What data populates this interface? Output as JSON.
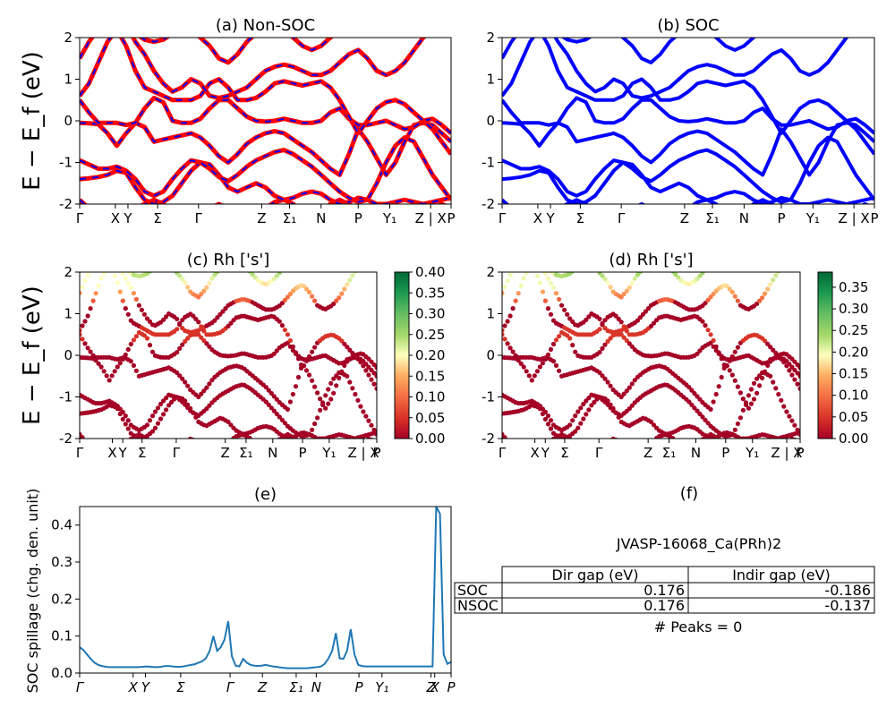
{
  "figure": {
    "ylabel_bands": "E − E_f (eV)",
    "ylabel_spillage": "SOC spillage (chg. den. unit)"
  },
  "kpath": {
    "band_labels": [
      "Γ",
      "X",
      "Y",
      "Σ",
      "Γ",
      "Z",
      "Σ₁",
      "N",
      "P",
      "Y₁",
      "Z | X",
      "P"
    ],
    "spillage_labels": [
      "Γ",
      "X",
      "Y",
      "Σ",
      "Γ",
      "Z",
      "Σ₁",
      "N",
      "P",
      "Y₁",
      "Z",
      "X",
      "P"
    ]
  },
  "colors": {
    "soc": "#0000ff",
    "nonsoc": "#ff0000",
    "spillage": "#1f77b4"
  },
  "chart_data": [
    {
      "id": "a",
      "type": "line",
      "title": "(a) Non-SOC",
      "ylim": [
        -2,
        2
      ],
      "yticks": [
        -2,
        -1,
        0,
        1,
        2
      ],
      "x": [
        0,
        1,
        2,
        3,
        4,
        5,
        6,
        7,
        8,
        9,
        10,
        11,
        12,
        13,
        14,
        15,
        16,
        17,
        18,
        19,
        20,
        21,
        22,
        23,
        24,
        25,
        26,
        27,
        28,
        29,
        30,
        31,
        32,
        33,
        34,
        35,
        36,
        37,
        38,
        39,
        40
      ],
      "series": [
        {
          "values": [
            -1.9,
            -2.1,
            -2.2,
            -2.3,
            -2.4,
            -2.3,
            -2.1,
            -2.0,
            -1.9,
            -2.0,
            -2.2,
            -2.4,
            -2.5,
            -2.3,
            -2.1,
            -2.0,
            -2.1,
            -2.3,
            -2.4,
            -2.3,
            -2.1,
            -1.95,
            -1.9,
            -2.0,
            -2.2,
            -2.3,
            -2.2,
            -2.0,
            -1.9,
            -2.0,
            -2.2,
            -2.3,
            -2.1,
            -2.0,
            -2.1,
            -2.2,
            -2.3,
            -2.2,
            -2.1,
            -2.0,
            -2.1
          ]
        },
        {
          "values": [
            -1.4,
            -1.38,
            -1.35,
            -1.3,
            -1.2,
            -1.25,
            -1.6,
            -1.9,
            -2.0,
            -1.95,
            -1.8,
            -1.5,
            -1.2,
            -1.0,
            -1.05,
            -1.3,
            -1.6,
            -1.7,
            -1.6,
            -1.5,
            -1.6,
            -1.8,
            -1.9,
            -1.85,
            -1.75,
            -1.7,
            -1.75,
            -1.9,
            -2.0,
            -1.95,
            -1.85,
            -1.9,
            -2.0,
            -2.0,
            -1.95,
            -1.9,
            -1.95,
            -2.0,
            -1.95,
            -1.9,
            -1.85
          ]
        },
        {
          "values": [
            -0.95,
            -1.05,
            -1.15,
            -1.15,
            -1.1,
            -1.2,
            -1.4,
            -1.7,
            -1.8,
            -1.7,
            -1.4,
            -1.15,
            -0.95,
            -1.0,
            -1.15,
            -1.35,
            -1.45,
            -1.3,
            -1.1,
            -0.95,
            -0.85,
            -0.75,
            -0.7,
            -0.8,
            -0.95,
            -1.1,
            -1.3,
            -1.5,
            -1.7,
            -1.85,
            -1.95,
            -1.9,
            -1.5,
            -1.0,
            -0.6,
            -0.4,
            -0.5,
            -0.9,
            -1.3,
            -1.6,
            -1.9
          ]
        },
        {
          "values": [
            -0.05,
            -0.06,
            -0.08,
            -0.3,
            -0.6,
            -0.3,
            -0.05,
            -0.15,
            -0.5,
            -0.45,
            -0.4,
            -0.35,
            -0.3,
            -0.4,
            -0.6,
            -0.85,
            -1.0,
            -0.8,
            -0.55,
            -0.4,
            -0.3,
            -0.25,
            -0.3,
            -0.45,
            -0.6,
            -0.75,
            -0.95,
            -1.15,
            -1.3,
            -0.8,
            -0.2,
            -0.5,
            -0.9,
            -1.3,
            -1.0,
            -0.5,
            -0.1,
            -0.05,
            -0.1,
            -0.3,
            -0.5
          ]
        },
        {
          "values": [
            0.5,
            0.2,
            -0.05,
            -0.05,
            -0.05,
            -0.1,
            -0.05,
            0.3,
            0.55,
            0.45,
            0.0,
            -0.05,
            -0.05,
            0.05,
            0.3,
            0.5,
            0.5,
            0.3,
            0.1,
            0.0,
            -0.02,
            0.0,
            0.05,
            0.0,
            -0.05,
            -0.05,
            0.0,
            0.2,
            0.3,
            0.05,
            -0.1,
            -0.1,
            -0.05,
            0.0,
            -0.1,
            -0.2,
            -0.15,
            0.0,
            0.05,
            -0.1,
            -0.3
          ]
        },
        {
          "values": [
            0.6,
            0.9,
            1.4,
            1.9,
            2.2,
            1.8,
            1.2,
            0.8,
            0.7,
            0.6,
            0.5,
            0.5,
            0.5,
            0.6,
            0.9,
            1.0,
            0.8,
            0.5,
            0.5,
            0.55,
            0.7,
            0.9,
            0.95,
            0.9,
            0.85,
            0.9,
            0.95,
            0.8,
            0.5,
            0.1,
            -0.3,
            0.0,
            0.3,
            0.45,
            0.5,
            0.4,
            0.2,
            0.0,
            -0.2,
            -0.5,
            -0.8
          ]
        },
        {
          "values": [
            1.5,
            1.9,
            2.2,
            2.4,
            2.5,
            2.3,
            1.9,
            1.6,
            1.2,
            0.9,
            0.7,
            0.8,
            1.0,
            0.9,
            0.6,
            0.55,
            0.6,
            0.7,
            0.8,
            1.0,
            1.2,
            1.3,
            1.35,
            1.3,
            1.2,
            1.1,
            1.1,
            1.2,
            1.4,
            1.6,
            1.7,
            1.5,
            1.2,
            1.1,
            1.2,
            1.4,
            1.7,
            2.0,
            2.2,
            2.3,
            2.4
          ]
        },
        {
          "values": [
            2.2,
            2.4,
            2.6,
            2.6,
            2.5,
            2.3,
            2.1,
            1.95,
            1.9,
            1.95,
            2.1,
            2.3,
            2.2,
            2.0,
            1.8,
            1.5,
            1.4,
            1.6,
            1.9,
            2.1,
            2.2,
            2.3,
            2.2,
            2.0,
            1.8,
            1.7,
            1.8,
            2.0,
            2.2,
            2.4,
            2.5,
            2.4,
            2.2,
            2.1,
            2.2,
            2.3,
            2.4,
            2.5,
            2.4,
            2.3,
            2.2
          ]
        }
      ]
    },
    {
      "id": "b",
      "type": "line",
      "title": "(b) SOC",
      "ylim": [
        -2,
        2
      ],
      "yticks": [
        -2,
        -1,
        0,
        1,
        2
      ],
      "x": [
        0,
        1,
        2,
        3,
        4,
        5,
        6,
        7,
        8,
        9,
        10,
        11,
        12,
        13,
        14,
        15,
        16,
        17,
        18,
        19,
        20,
        21,
        22,
        23,
        24,
        25,
        26,
        27,
        28,
        29,
        30,
        31,
        32,
        33,
        34,
        35,
        36,
        37,
        38,
        39,
        40
      ],
      "series": [
        {
          "values": [
            -1.9,
            -2.1,
            -2.2,
            -2.3,
            -2.4,
            -2.3,
            -2.1,
            -2.0,
            -1.9,
            -2.0,
            -2.2,
            -2.4,
            -2.5,
            -2.3,
            -2.1,
            -2.0,
            -2.1,
            -2.3,
            -2.4,
            -2.3,
            -2.1,
            -1.95,
            -1.9,
            -2.0,
            -2.2,
            -2.3,
            -2.2,
            -2.0,
            -1.9,
            -2.0,
            -2.2,
            -2.3,
            -2.1,
            -2.0,
            -2.1,
            -2.2,
            -2.3,
            -2.2,
            -2.1,
            -2.0,
            -2.1
          ]
        },
        {
          "values": [
            -1.4,
            -1.38,
            -1.35,
            -1.3,
            -1.2,
            -1.25,
            -1.6,
            -1.9,
            -2.0,
            -1.95,
            -1.8,
            -1.5,
            -1.2,
            -1.0,
            -1.05,
            -1.3,
            -1.6,
            -1.7,
            -1.6,
            -1.5,
            -1.6,
            -1.8,
            -1.9,
            -1.85,
            -1.75,
            -1.7,
            -1.75,
            -1.9,
            -2.0,
            -1.95,
            -1.85,
            -1.9,
            -2.0,
            -2.0,
            -1.95,
            -1.9,
            -1.95,
            -2.0,
            -1.95,
            -1.9,
            -1.85
          ]
        },
        {
          "values": [
            -0.95,
            -1.05,
            -1.15,
            -1.15,
            -1.1,
            -1.2,
            -1.4,
            -1.7,
            -1.8,
            -1.7,
            -1.4,
            -1.15,
            -0.95,
            -1.0,
            -1.15,
            -1.35,
            -1.45,
            -1.3,
            -1.1,
            -0.95,
            -0.85,
            -0.75,
            -0.7,
            -0.8,
            -0.95,
            -1.1,
            -1.3,
            -1.5,
            -1.7,
            -1.85,
            -1.95,
            -1.9,
            -1.5,
            -1.0,
            -0.6,
            -0.4,
            -0.5,
            -0.9,
            -1.3,
            -1.6,
            -1.9
          ]
        },
        {
          "values": [
            -0.05,
            -0.06,
            -0.08,
            -0.3,
            -0.6,
            -0.3,
            -0.05,
            -0.15,
            -0.5,
            -0.45,
            -0.4,
            -0.35,
            -0.3,
            -0.4,
            -0.6,
            -0.85,
            -1.0,
            -0.8,
            -0.55,
            -0.4,
            -0.3,
            -0.25,
            -0.3,
            -0.45,
            -0.6,
            -0.75,
            -0.95,
            -1.15,
            -1.3,
            -0.8,
            -0.2,
            -0.5,
            -0.9,
            -1.3,
            -1.0,
            -0.5,
            -0.1,
            -0.05,
            -0.1,
            -0.3,
            -0.5
          ]
        },
        {
          "values": [
            0.5,
            0.2,
            -0.05,
            -0.05,
            -0.05,
            -0.1,
            -0.05,
            0.3,
            0.55,
            0.45,
            0.0,
            -0.05,
            -0.05,
            0.05,
            0.3,
            0.5,
            0.5,
            0.3,
            0.1,
            0.0,
            -0.02,
            0.0,
            0.05,
            0.0,
            -0.05,
            -0.05,
            0.0,
            0.2,
            0.3,
            0.05,
            -0.1,
            -0.1,
            -0.05,
            0.0,
            -0.1,
            -0.2,
            -0.15,
            0.0,
            0.05,
            -0.1,
            -0.3
          ]
        },
        {
          "values": [
            0.6,
            0.9,
            1.4,
            1.9,
            2.2,
            1.8,
            1.2,
            0.8,
            0.7,
            0.6,
            0.5,
            0.5,
            0.5,
            0.6,
            0.9,
            1.0,
            0.8,
            0.5,
            0.5,
            0.55,
            0.7,
            0.9,
            0.95,
            0.9,
            0.85,
            0.9,
            0.95,
            0.8,
            0.5,
            0.1,
            -0.3,
            0.0,
            0.3,
            0.45,
            0.5,
            0.4,
            0.2,
            0.0,
            -0.2,
            -0.5,
            -0.8
          ]
        },
        {
          "values": [
            1.5,
            1.9,
            2.2,
            2.4,
            2.5,
            2.3,
            1.9,
            1.6,
            1.2,
            0.9,
            0.7,
            0.8,
            1.0,
            0.9,
            0.6,
            0.55,
            0.6,
            0.7,
            0.8,
            1.0,
            1.2,
            1.3,
            1.35,
            1.3,
            1.2,
            1.1,
            1.1,
            1.2,
            1.4,
            1.6,
            1.7,
            1.5,
            1.2,
            1.1,
            1.2,
            1.4,
            1.7,
            2.0,
            2.2,
            2.3,
            2.4
          ]
        },
        {
          "values": [
            2.2,
            2.4,
            2.6,
            2.6,
            2.5,
            2.3,
            2.1,
            1.95,
            1.9,
            1.95,
            2.1,
            2.3,
            2.2,
            2.0,
            1.8,
            1.5,
            1.4,
            1.6,
            1.9,
            2.1,
            2.2,
            2.3,
            2.2,
            2.0,
            1.8,
            1.7,
            1.8,
            2.0,
            2.2,
            2.4,
            2.5,
            2.4,
            2.2,
            2.1,
            2.2,
            2.3,
            2.4,
            2.5,
            2.4,
            2.3,
            2.2
          ]
        }
      ]
    },
    {
      "id": "c",
      "type": "scatter",
      "title": "(c)  Rh ['s']",
      "ylim": [
        -2,
        2
      ],
      "yticks": [
        -2,
        -1,
        0,
        1,
        2
      ],
      "colorbar": {
        "min": 0.0,
        "max": 0.4,
        "ticks": [
          "0.00",
          "0.05",
          "0.10",
          "0.15",
          "0.20",
          "0.25",
          "0.30",
          "0.35",
          "0.40"
        ]
      }
    },
    {
      "id": "d",
      "type": "scatter",
      "title": "(d) Rh ['s']",
      "ylim": [
        -2,
        2
      ],
      "yticks": [
        -2,
        -1,
        0,
        1,
        2
      ],
      "colorbar": {
        "min": 0.0,
        "max": 0.385,
        "ticks": [
          "0.00",
          "0.05",
          "0.10",
          "0.15",
          "0.20",
          "0.25",
          "0.30",
          "0.35"
        ]
      }
    },
    {
      "id": "e",
      "type": "line",
      "title": "(e)",
      "ylabel": "SOC spillage (chg. den. unit)",
      "ylim": [
        0,
        0.45
      ],
      "yticks": [
        "0.0",
        "0.1",
        "0.2",
        "0.3",
        "0.4"
      ],
      "x": [
        0,
        1,
        2,
        3,
        4,
        5,
        6,
        7,
        8,
        9,
        10,
        11,
        12,
        13,
        14,
        15,
        16,
        17,
        18,
        19,
        20,
        21,
        22,
        23,
        24,
        25,
        26,
        27,
        28,
        29,
        30,
        31,
        32,
        33,
        34,
        35,
        36,
        37,
        38,
        39,
        40,
        41,
        42,
        43,
        44,
        45,
        46,
        47,
        48,
        49,
        50,
        51,
        52,
        53,
        54,
        55,
        56,
        57,
        58,
        59,
        60,
        61,
        62,
        63,
        64,
        65,
        66,
        67,
        68,
        69,
        70,
        71,
        72,
        73,
        74,
        75,
        76,
        77,
        78,
        79,
        80,
        81,
        82,
        83,
        84,
        85,
        86,
        87,
        88,
        89,
        90,
        91,
        92,
        93,
        94,
        95,
        96,
        97,
        98,
        99,
        100
      ],
      "values": [
        0.07,
        0.062,
        0.05,
        0.038,
        0.028,
        0.022,
        0.019,
        0.017,
        0.016,
        0.016,
        0.016,
        0.016,
        0.016,
        0.016,
        0.016,
        0.016,
        0.016,
        0.017,
        0.018,
        0.017,
        0.016,
        0.016,
        0.017,
        0.019,
        0.019,
        0.018,
        0.017,
        0.017,
        0.018,
        0.02,
        0.022,
        0.024,
        0.028,
        0.032,
        0.04,
        0.06,
        0.1,
        0.06,
        0.07,
        0.09,
        0.14,
        0.045,
        0.02,
        0.018,
        0.038,
        0.028,
        0.022,
        0.02,
        0.019,
        0.02,
        0.022,
        0.02,
        0.018,
        0.017,
        0.015,
        0.014,
        0.013,
        0.013,
        0.013,
        0.013,
        0.013,
        0.013,
        0.014,
        0.015,
        0.016,
        0.018,
        0.025,
        0.04,
        0.06,
        0.108,
        0.04,
        0.038,
        0.06,
        0.118,
        0.05,
        0.022,
        0.019,
        0.018,
        0.018,
        0.018,
        0.018,
        0.018,
        0.018,
        0.018,
        0.018,
        0.018,
        0.018,
        0.018,
        0.018,
        0.018,
        0.018,
        0.018,
        0.018,
        0.018,
        0.018,
        0.018,
        0.45,
        0.43,
        0.05,
        0.025,
        0.03
      ]
    }
  ],
  "info": {
    "title": "(f)",
    "material": "JVASP-16068_Ca(PRh)2",
    "table_headers": [
      "",
      "Dir gap (eV)",
      "Indir gap (eV)"
    ],
    "table_rows": [
      [
        "SOC",
        "0.176",
        "-0.186"
      ],
      [
        "NSOC",
        "0.176",
        "-0.137"
      ]
    ],
    "peaks": "# Peaks = 0"
  }
}
